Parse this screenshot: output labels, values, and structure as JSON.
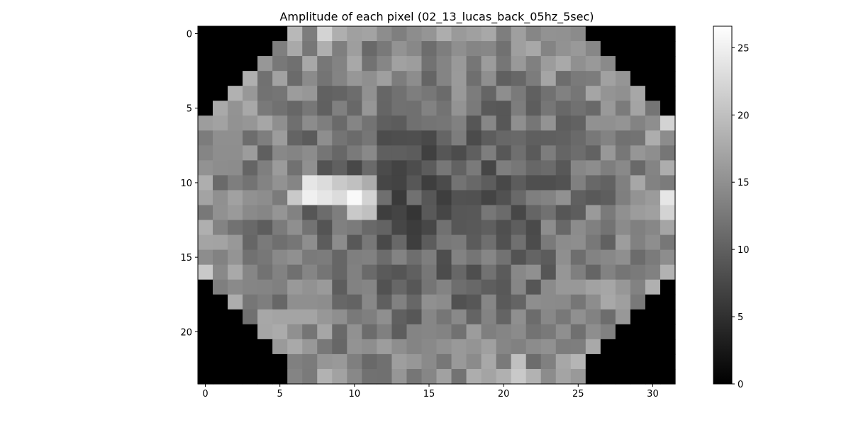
{
  "chart_data": {
    "type": "heatmap",
    "title": "Amplitude of each pixel (02_13_lucas_back_05hz_5sec)",
    "xlabel": "",
    "ylabel": "",
    "rows": 24,
    "cols": 32,
    "x_ticks": [
      0,
      5,
      10,
      15,
      20,
      25,
      30
    ],
    "y_ticks": [
      0,
      5,
      10,
      15,
      20
    ],
    "colormap": "gray",
    "colorbar": {
      "min": 0,
      "max": 26.6,
      "ticks": [
        0,
        5,
        10,
        15,
        20,
        25
      ]
    },
    "grid": false,
    "mask_value": 0,
    "row_extents": [
      [
        6,
        25
      ],
      [
        5,
        26
      ],
      [
        4,
        27
      ],
      [
        3,
        28
      ],
      [
        2,
        29
      ],
      [
        1,
        30
      ],
      [
        0,
        31
      ],
      [
        0,
        31
      ],
      [
        0,
        31
      ],
      [
        0,
        31
      ],
      [
        0,
        31
      ],
      [
        0,
        31
      ],
      [
        0,
        31
      ],
      [
        0,
        31
      ],
      [
        0,
        31
      ],
      [
        0,
        31
      ],
      [
        0,
        31
      ],
      [
        1,
        30
      ],
      [
        2,
        29
      ],
      [
        3,
        28
      ],
      [
        4,
        27
      ],
      [
        5,
        26
      ],
      [
        6,
        25
      ],
      [
        6,
        25
      ]
    ],
    "bright_region": [
      {
        "row": 10,
        "col": 7,
        "value": 24
      },
      {
        "row": 10,
        "col": 8,
        "value": 23
      },
      {
        "row": 10,
        "col": 9,
        "value": 21
      },
      {
        "row": 10,
        "col": 10,
        "value": 20
      },
      {
        "row": 10,
        "col": 11,
        "value": 18
      },
      {
        "row": 11,
        "col": 6,
        "value": 21
      },
      {
        "row": 11,
        "col": 7,
        "value": 25
      },
      {
        "row": 11,
        "col": 8,
        "value": 24
      },
      {
        "row": 11,
        "col": 9,
        "value": 23
      },
      {
        "row": 11,
        "col": 10,
        "value": 26
      },
      {
        "row": 11,
        "col": 11,
        "value": 22
      },
      {
        "row": 11,
        "col": 31,
        "value": 24
      },
      {
        "row": 12,
        "col": 10,
        "value": 21
      },
      {
        "row": 12,
        "col": 11,
        "value": 20
      },
      {
        "row": 12,
        "col": 31,
        "value": 22
      },
      {
        "row": 0,
        "col": 8,
        "value": 22
      },
      {
        "row": 23,
        "col": 21,
        "value": 21
      },
      {
        "row": 22,
        "col": 21,
        "value": 20
      },
      {
        "row": 16,
        "col": 0,
        "value": 21
      },
      {
        "row": 6,
        "col": 31,
        "value": 22
      }
    ]
  }
}
